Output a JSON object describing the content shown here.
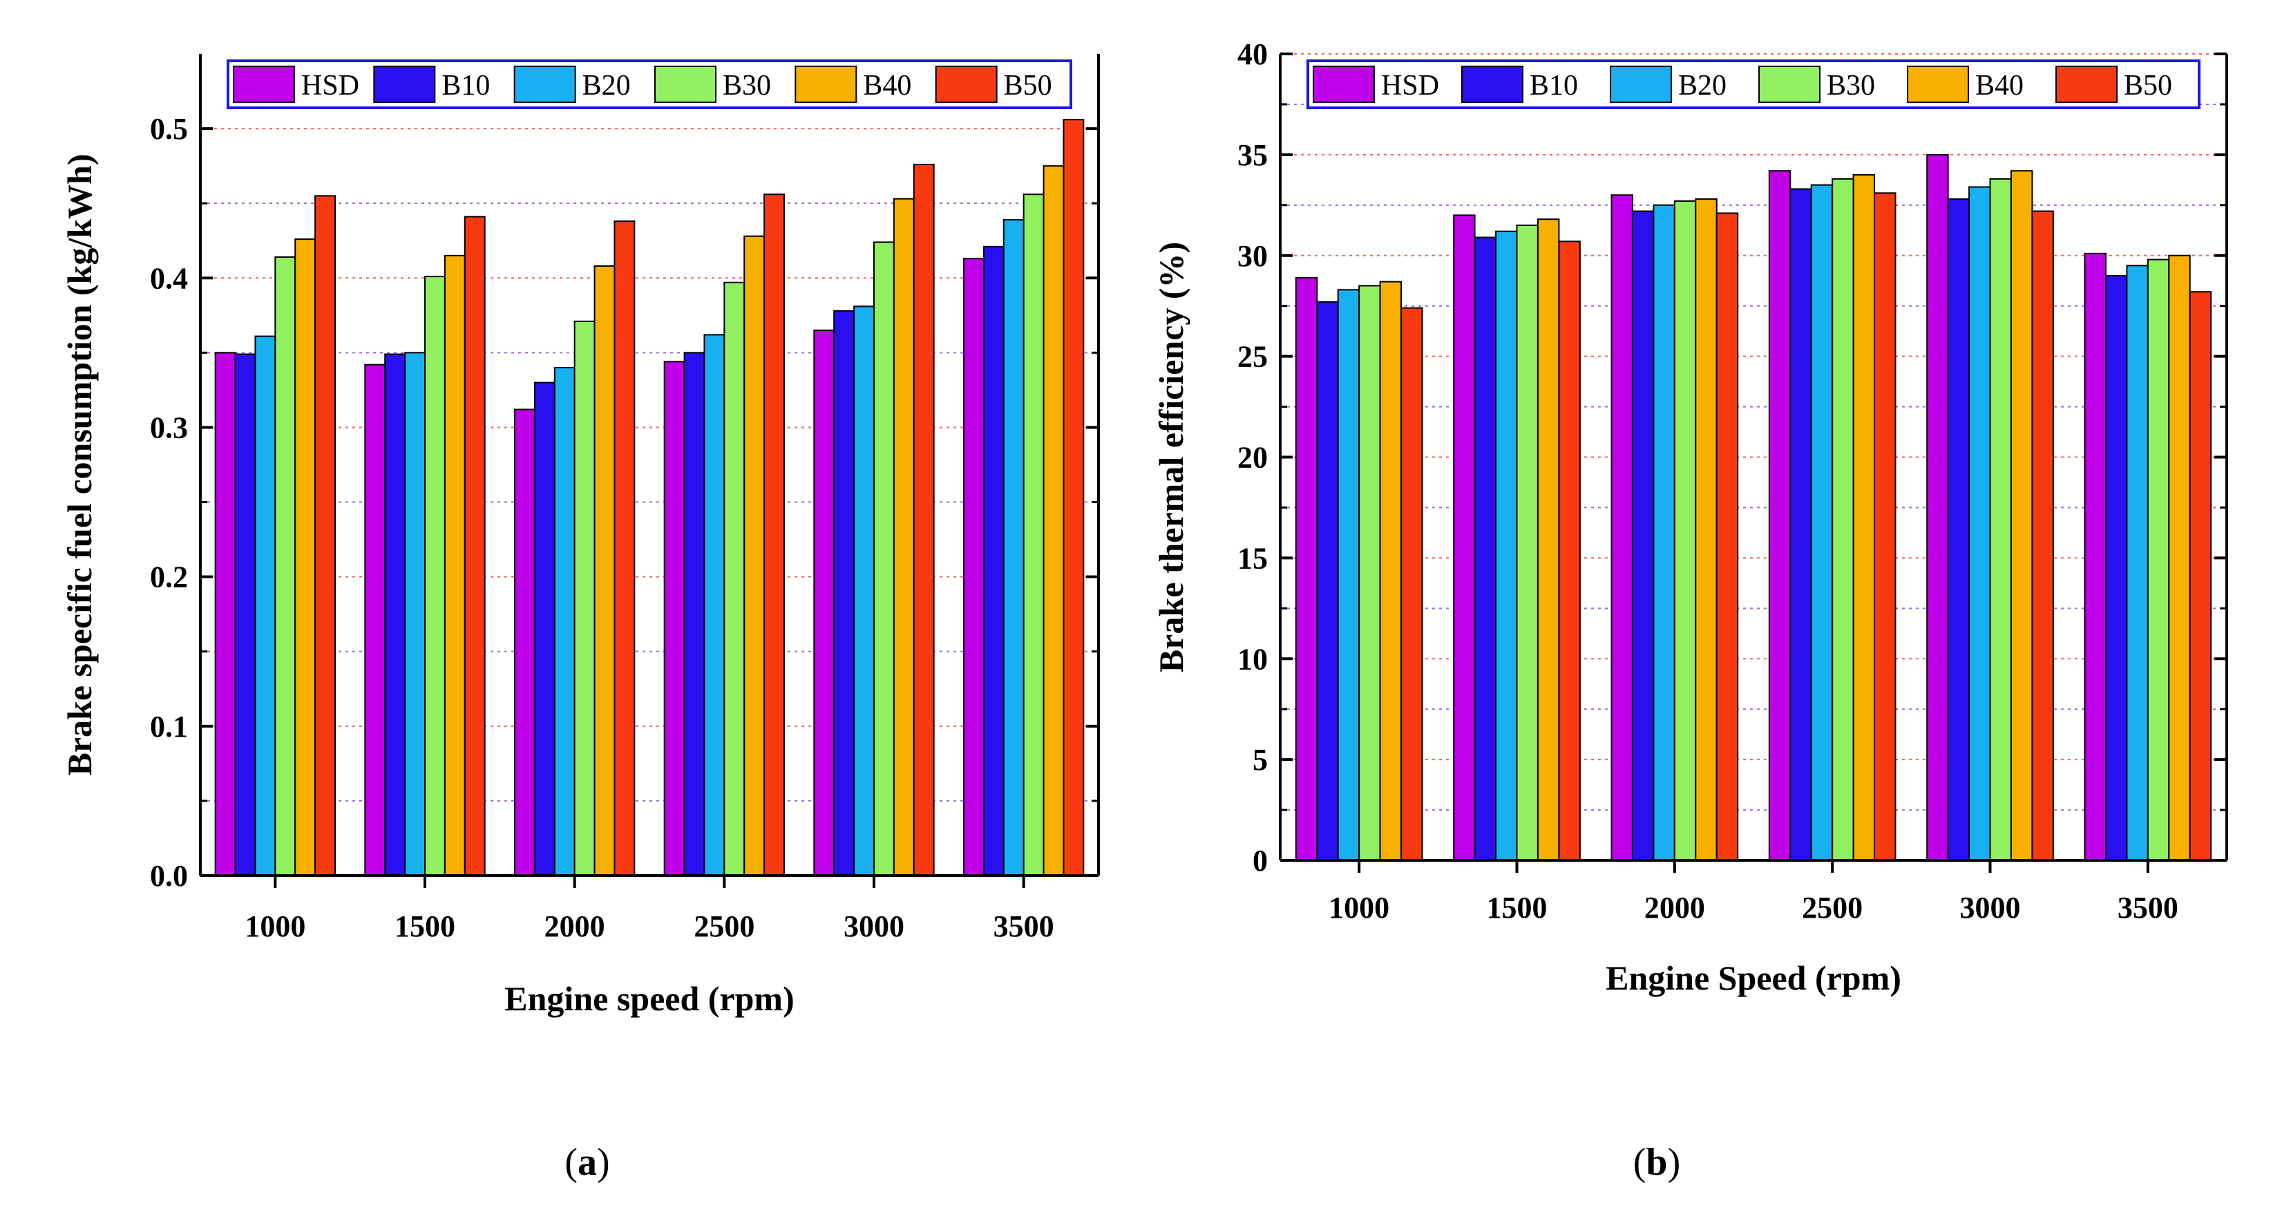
{
  "series_names": [
    "HSD",
    "B10",
    "B20",
    "B30",
    "B40",
    "B50"
  ],
  "series_colors": [
    "#c000e8",
    "#2a10f0",
    "#18b0f0",
    "#90f060",
    "#f8b000",
    "#f83a10"
  ],
  "grid_colors": {
    "major": "#f06060",
    "minor": "#9a6ae0"
  },
  "chart_data": [
    {
      "type": "bar",
      "panel": "(a)",
      "panel_letter": "a",
      "title": "",
      "xlabel": "Engine speed (rpm)",
      "ylabel": "Brake specific fuel consumption (kg/kWh)",
      "categories": [
        "1000",
        "1500",
        "2000",
        "2500",
        "3000",
        "3500"
      ],
      "ylim": [
        0,
        0.55
      ],
      "yticks": [
        0.0,
        0.1,
        0.2,
        0.3,
        0.4,
        0.5
      ],
      "ytick_labels": [
        "0.0",
        "0.1",
        "0.2",
        "0.3",
        "0.4",
        "0.5"
      ],
      "grid": true,
      "legend": "top",
      "series": [
        {
          "name": "HSD",
          "values": [
            0.35,
            0.342,
            0.312,
            0.344,
            0.365,
            0.413
          ]
        },
        {
          "name": "B10",
          "values": [
            0.349,
            0.349,
            0.33,
            0.35,
            0.378,
            0.421
          ]
        },
        {
          "name": "B20",
          "values": [
            0.361,
            0.35,
            0.34,
            0.362,
            0.381,
            0.439
          ]
        },
        {
          "name": "B30",
          "values": [
            0.414,
            0.401,
            0.371,
            0.397,
            0.424,
            0.456
          ]
        },
        {
          "name": "B40",
          "values": [
            0.426,
            0.415,
            0.408,
            0.428,
            0.453,
            0.475
          ]
        },
        {
          "name": "B50",
          "values": [
            0.455,
            0.441,
            0.438,
            0.456,
            0.476,
            0.506
          ]
        }
      ]
    },
    {
      "type": "bar",
      "panel": "(b)",
      "panel_letter": "b",
      "title": "",
      "xlabel": "Engine Speed (rpm)",
      "ylabel": "Brake thermal efficiency (%)",
      "categories": [
        "1000",
        "1500",
        "2000",
        "2500",
        "3000",
        "3500"
      ],
      "ylim": [
        0,
        40
      ],
      "yticks": [
        0,
        5,
        10,
        15,
        20,
        25,
        30,
        35,
        40
      ],
      "ytick_labels": [
        "0",
        "5",
        "10",
        "15",
        "20",
        "25",
        "30",
        "35",
        "40"
      ],
      "grid": true,
      "legend": "top",
      "series": [
        {
          "name": "HSD",
          "values": [
            28.9,
            32.0,
            33.0,
            34.2,
            35.0,
            30.1
          ]
        },
        {
          "name": "B10",
          "values": [
            27.7,
            30.9,
            32.2,
            33.3,
            32.8,
            29.0
          ]
        },
        {
          "name": "B20",
          "values": [
            28.3,
            31.2,
            32.5,
            33.5,
            33.4,
            29.5
          ]
        },
        {
          "name": "B30",
          "values": [
            28.5,
            31.5,
            32.7,
            33.8,
            33.8,
            29.8
          ]
        },
        {
          "name": "B40",
          "values": [
            28.7,
            31.8,
            32.8,
            34.0,
            34.2,
            30.0
          ]
        },
        {
          "name": "B50",
          "values": [
            27.4,
            30.7,
            32.1,
            33.1,
            32.2,
            28.2
          ]
        }
      ]
    }
  ]
}
